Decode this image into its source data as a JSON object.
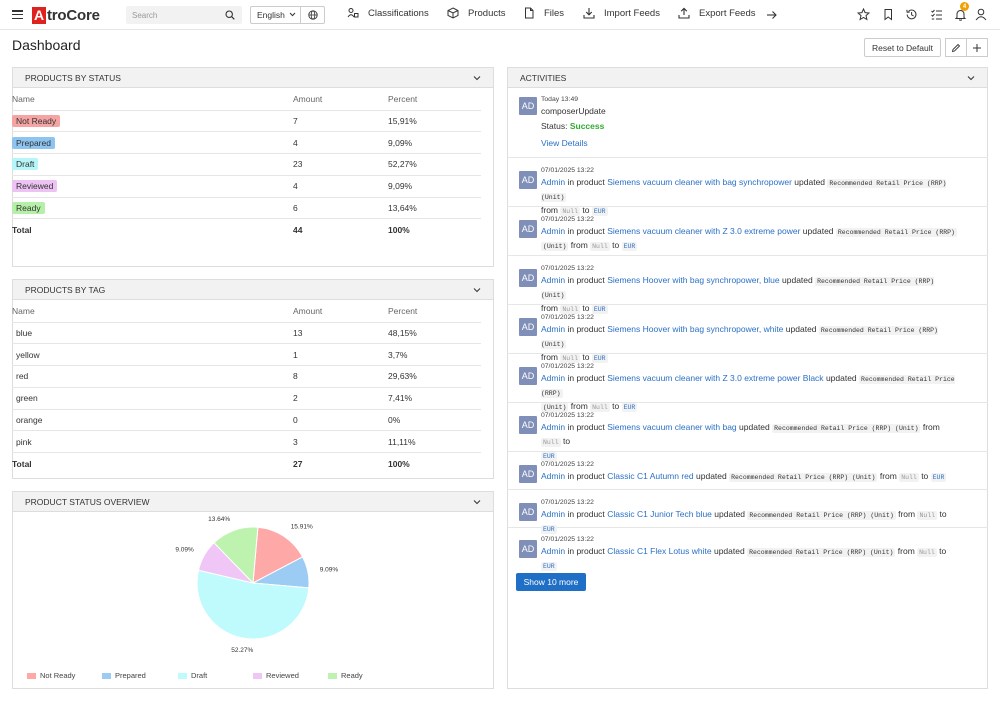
{
  "app": {
    "logo_letter": "A",
    "logo_text": "troCore",
    "brand_color": "#e0221f"
  },
  "search": {
    "placeholder": "Search"
  },
  "language": {
    "selected": "English"
  },
  "nav": [
    {
      "label": "Classifications",
      "icon": "classifications-icon"
    },
    {
      "label": "Products",
      "icon": "box-icon"
    },
    {
      "label": "Files",
      "icon": "file-icon"
    },
    {
      "label": "Import Feeds",
      "icon": "import-icon"
    },
    {
      "label": "Export Feeds",
      "icon": "export-icon"
    }
  ],
  "notifications": {
    "count": "4"
  },
  "page": {
    "title": "Dashboard",
    "reset_label": "Reset to Default"
  },
  "status_panel": {
    "title": "PRODUCTS BY STATUS",
    "columns": [
      "Name",
      "Amount",
      "Percent"
    ],
    "rows": [
      {
        "name": "Not Ready",
        "amount": "7",
        "percent": "15,91%",
        "color": "#f5a3a3"
      },
      {
        "name": "Prepared",
        "amount": "4",
        "percent": "9,09%",
        "color": "#8ec5f0"
      },
      {
        "name": "Draft",
        "amount": "23",
        "percent": "52,27%",
        "color": "#b7f6f8"
      },
      {
        "name": "Reviewed",
        "amount": "4",
        "percent": "9,09%",
        "color": "#ecc3f2"
      },
      {
        "name": "Ready",
        "amount": "6",
        "percent": "13,64%",
        "color": "#b6f0a8"
      }
    ],
    "total": {
      "label": "Total",
      "amount": "44",
      "percent": "100%"
    }
  },
  "tag_panel": {
    "title": "PRODUCTS BY TAG",
    "columns": [
      "Name",
      "Amount",
      "Percent"
    ],
    "rows": [
      {
        "name": "blue",
        "amount": "13",
        "percent": "48,15%"
      },
      {
        "name": "yellow",
        "amount": "1",
        "percent": "3,7%"
      },
      {
        "name": "red",
        "amount": "8",
        "percent": "29,63%"
      },
      {
        "name": "green",
        "amount": "2",
        "percent": "7,41%"
      },
      {
        "name": "orange",
        "amount": "0",
        "percent": "0%"
      },
      {
        "name": "pink",
        "amount": "3",
        "percent": "11,11%"
      }
    ],
    "total": {
      "label": "Total",
      "amount": "27",
      "percent": "100%"
    }
  },
  "overview_panel": {
    "title": "PRODUCT STATUS OVERVIEW"
  },
  "chart_data": {
    "type": "pie",
    "title": "",
    "slices": [
      {
        "name": "Not Ready",
        "value": 15.91,
        "label": "15.91%",
        "color": "#ffa8a8"
      },
      {
        "name": "Prepared",
        "value": 9.09,
        "label": "9.09%",
        "color": "#9ccbf3"
      },
      {
        "name": "Draft",
        "value": 52.27,
        "label": "52.27%",
        "color": "#bffafc"
      },
      {
        "name": "Reviewed",
        "value": 9.09,
        "label": "9.09%",
        "color": "#efc6f5"
      },
      {
        "name": "Ready",
        "value": 13.64,
        "label": "13.64%",
        "color": "#bdf3ae"
      }
    ],
    "legend_position": "bottom"
  },
  "activities": {
    "title": "ACTIVITIES",
    "first": {
      "time": "Today 13:49",
      "job": "composerUpdate",
      "status_label": "Status:",
      "status_value": "Success",
      "details_link": "View Details"
    },
    "items": [
      {
        "time": "07/01/2025 13:22",
        "product": "Siemens vacuum cleaner with bag synchropower",
        "line2": "from"
      },
      {
        "time": "07/01/2025 13:22",
        "product": "Siemens vacuum cleaner with Z 3.0 extreme power"
      },
      {
        "time": "07/01/2025 13:22",
        "product": "Siemens Hoover with bag synchropower, blue"
      },
      {
        "time": "07/01/2025 13:22",
        "product": "Siemens Hoover with bag synchropower, white"
      },
      {
        "time": "07/01/2025 13:22",
        "product": "Siemens vacuum cleaner with Z 3.0 extreme power Black"
      },
      {
        "time": "07/01/2025 13:22",
        "product": "Siemens vacuum cleaner with bag"
      },
      {
        "time": "07/01/2025 13:22",
        "product": "Classic C1 Autumn red"
      },
      {
        "time": "07/01/2025 13:22",
        "product": "Classic C1 Junior Tech blue"
      },
      {
        "time": "07/01/2025 13:22",
        "product": "Classic C1 Flex Lotus white"
      }
    ],
    "avatar_text": "AD",
    "actor": "Admin",
    "in_product": "in product",
    "updated": "updated",
    "field": "Recommended Retail Price (RRP) (Unit)",
    "field_part1": "Recommended Retail Price (RRP)",
    "field_part2": "(Unit)",
    "from": "from",
    "from_value": "Null",
    "to": "to",
    "to_value": "EUR",
    "more_label": "Show 10 more"
  }
}
